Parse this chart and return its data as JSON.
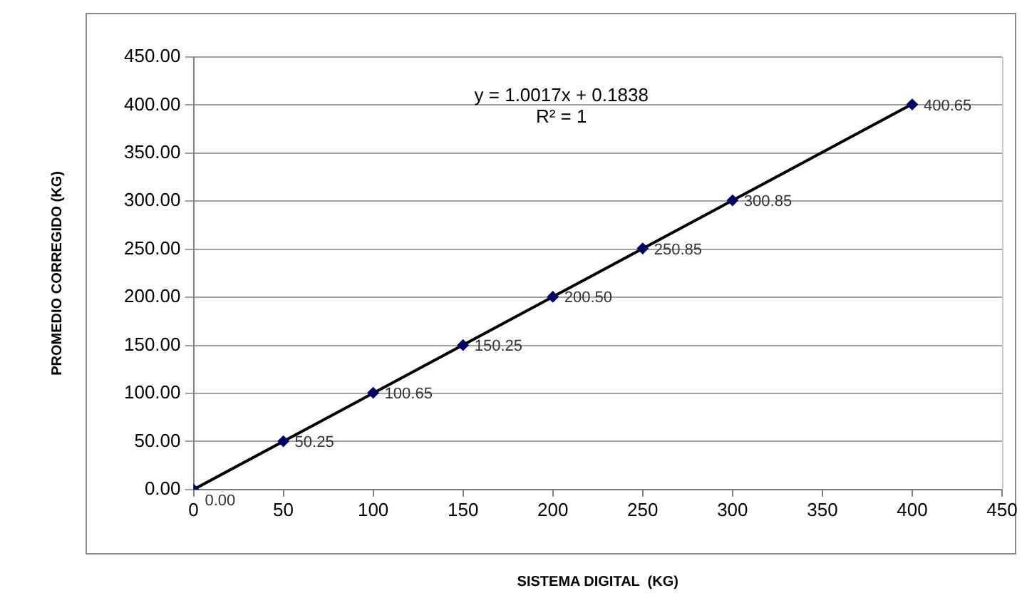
{
  "chart_data": {
    "type": "scatter",
    "xlabel": "SISTEMA DIGITAL  (KG)",
    "ylabel": "PROMEDIO CORREGIDO (KG)",
    "annotations": [
      "y = 1.0017x + 0.1838",
      "R² = 1"
    ],
    "series": [
      {
        "color": "#000066",
        "marker": "diamond",
        "x": [
          0,
          50,
          100,
          150,
          200,
          250,
          300,
          400
        ],
        "values": [
          0,
          50.25,
          100.65,
          150.25,
          200.5,
          250.85,
          300.85,
          400.65
        ],
        "value_labels": [
          "0.00",
          "50.25",
          "100.65",
          "150.25",
          "200.50",
          "250.85",
          "300.85",
          "400.65"
        ]
      },
      {
        "type": "line",
        "color": "#000000",
        "marker": "none",
        "x": [
          0,
          400
        ],
        "values": [
          0,
          401
        ]
      }
    ],
    "xlim": [
      0,
      450
    ],
    "xticks": [
      0,
      50,
      100,
      150,
      200,
      250,
      300,
      350,
      400,
      450
    ],
    "ylim": [
      0,
      450
    ],
    "yticks": [
      {
        "value": 0,
        "label": "0.00"
      },
      {
        "value": 50,
        "label": "50.00"
      },
      {
        "value": 100,
        "label": "100.00"
      },
      {
        "value": 150,
        "label": "150.00"
      },
      {
        "value": 200,
        "label": "200.00"
      },
      {
        "value": 250,
        "label": "250.00"
      },
      {
        "value": 300,
        "label": "300.00"
      },
      {
        "value": 350,
        "label": "350.00"
      },
      {
        "value": 400,
        "label": "400.00"
      },
      {
        "value": 450,
        "label": "450.00"
      }
    ],
    "grid": "y"
  }
}
